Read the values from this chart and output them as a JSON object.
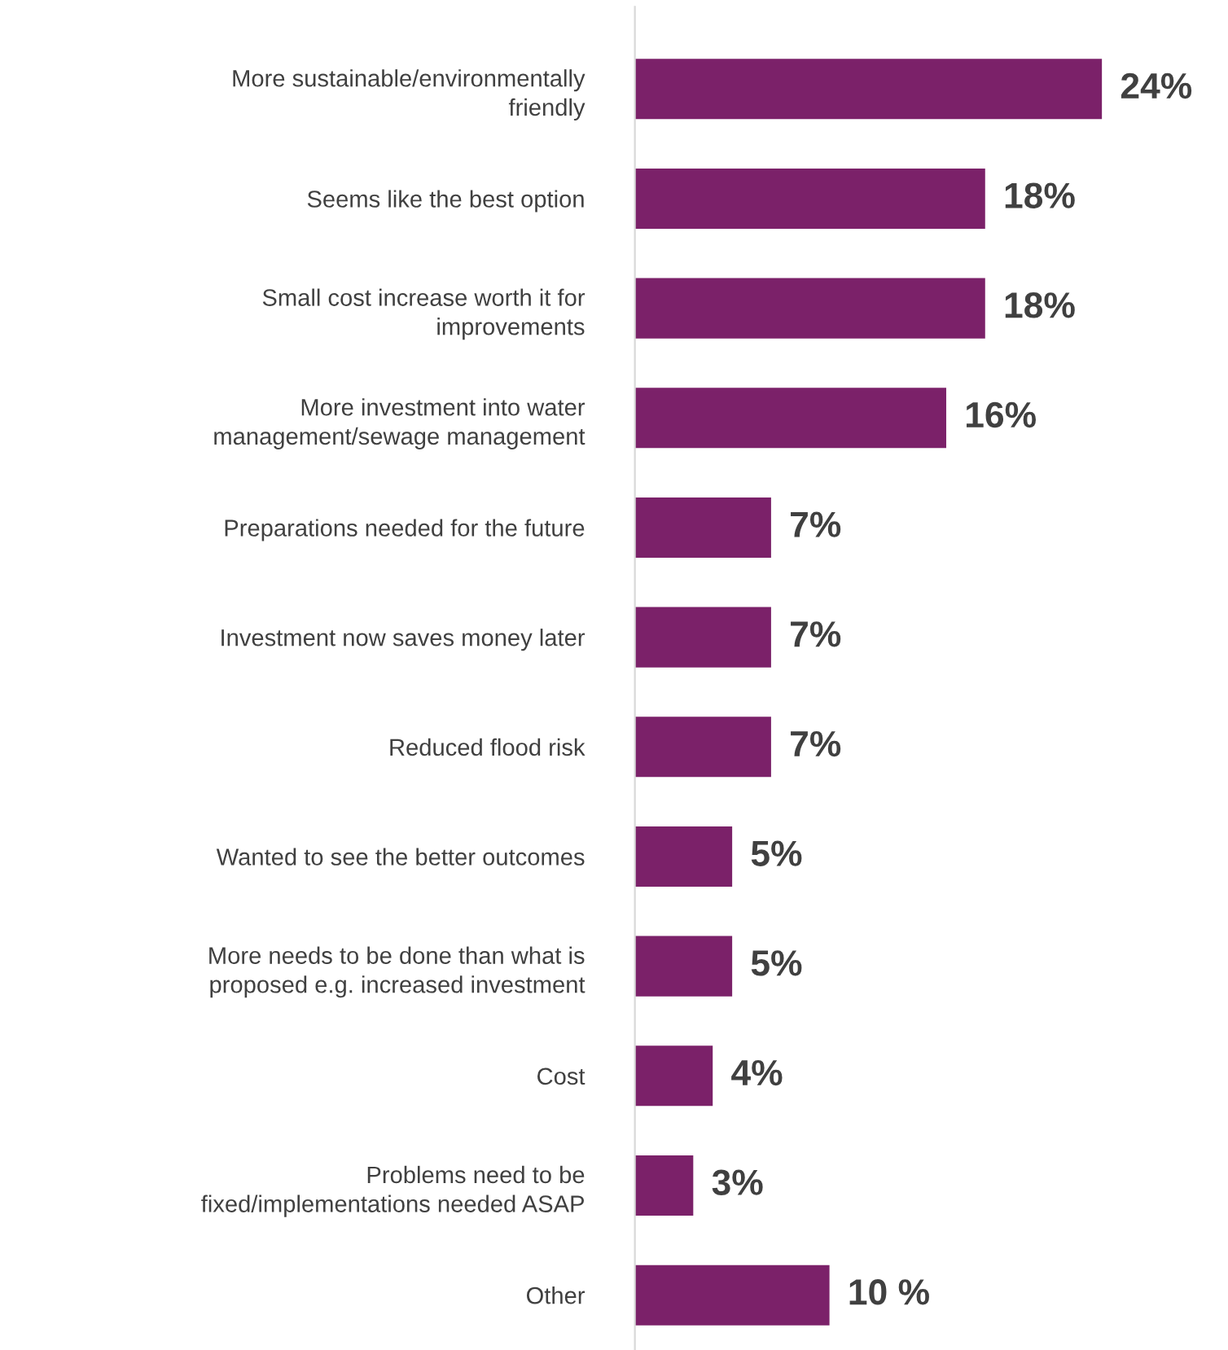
{
  "chart_data": {
    "type": "bar",
    "orientation": "horizontal",
    "categories": [
      "More sustainable/environmentally\nfriendly",
      "Seems like the best option",
      "Small cost increase worth it for\nimprovements",
      "More investment into water\nmanagement/sewage management",
      "Preparations needed for the future",
      "Investment now saves money later",
      "Reduced flood risk",
      "Wanted to see the better outcomes",
      "More needs to be done than what is\nproposed e.g. increased investment",
      "Cost",
      "Problems need to be\nfixed/implementations needed ASAP",
      "Other"
    ],
    "values": [
      24,
      18,
      18,
      16,
      7,
      7,
      7,
      5,
      5,
      4,
      3,
      10
    ],
    "value_labels": [
      "24%",
      "18%",
      "18%",
      "16%",
      "7%",
      "7%",
      "7%",
      "5%",
      "5%",
      "4%",
      "3%",
      "10 %"
    ],
    "color": "#7b2169",
    "grid": false,
    "legend": false,
    "tick_labels": "y"
  }
}
